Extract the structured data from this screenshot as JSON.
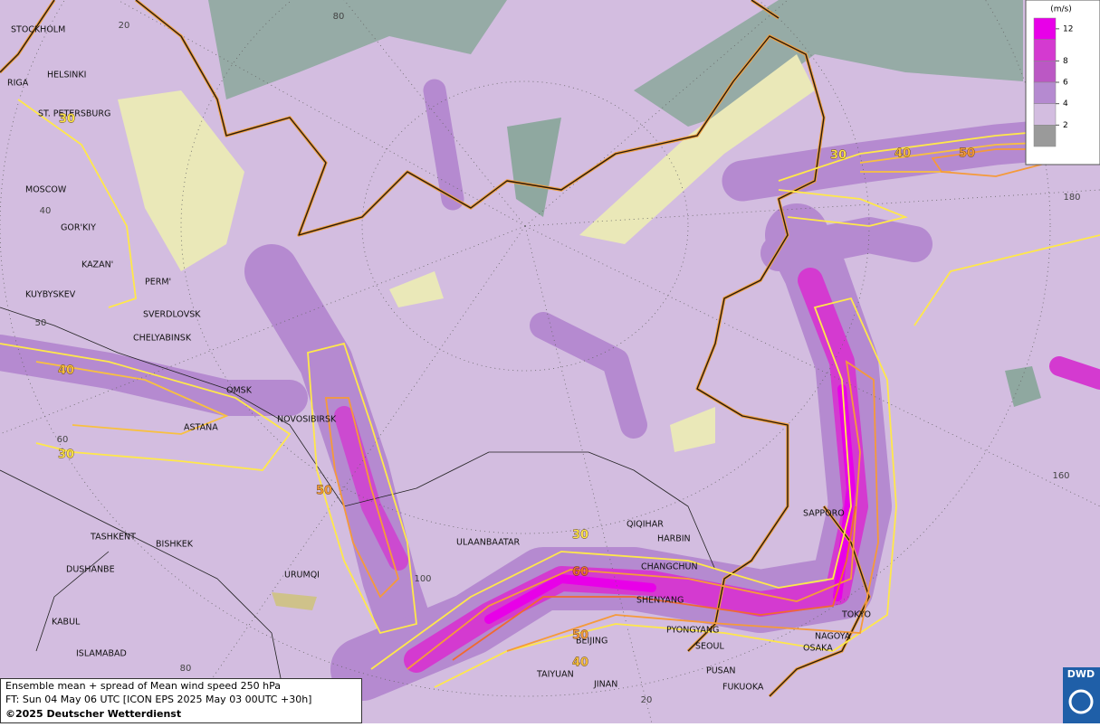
{
  "map": {
    "cities": [
      "STOCKHOLM",
      "HELSINKI",
      "RIGA",
      "ST. PETERSBURG",
      "MOSCOW",
      "GOR'KIY",
      "KAZAN'",
      "PERM'",
      "KUYBYSKEV",
      "SVERDLOVSK",
      "CHELYABINSK",
      "OMSK",
      "NOVOSIBIRSK",
      "ASTANA",
      "TASHKENT",
      "BISHKEK",
      "DUSHANBE",
      "URUMQI",
      "KABUL",
      "ISLAMABAD",
      "ULAANBAATAR",
      "QIQIHAR",
      "HARBIN",
      "CHANGCHUN",
      "SHENYANG",
      "PYONGYANG",
      "SEOUL",
      "BEIJING",
      "TAIYUAN",
      "JINAN",
      "PUSAN",
      "FUKUOKA",
      "OSAKA",
      "NAGOYA",
      "TOKYO",
      "SAPPORO"
    ],
    "graticule_labels": [
      20,
      80,
      40,
      50,
      60,
      100,
      80,
      20,
      180,
      160
    ],
    "contour_labels": [
      {
        "value": 30,
        "color": "#ffe84a"
      },
      {
        "value": 40,
        "color": "#f8c040"
      },
      {
        "value": 30,
        "color": "#ffe84a"
      },
      {
        "value": 50,
        "color": "#f59a3a"
      },
      {
        "value": 30,
        "color": "#ffe84a"
      },
      {
        "value": 60,
        "color": "#f06a30"
      },
      {
        "value": 50,
        "color": "#f59a3a"
      },
      {
        "value": 40,
        "color": "#f8c040"
      },
      {
        "value": 30,
        "color": "#ffe84a"
      },
      {
        "value": 40,
        "color": "#f8c040"
      },
      {
        "value": 50,
        "color": "#f59a3a"
      }
    ]
  },
  "legend": {
    "unit": "(m/s)",
    "levels": [
      12,
      8,
      6,
      4,
      2
    ],
    "colors": [
      "#e800e8",
      "#d43ad0",
      "#bb58c4",
      "#b58ad0",
      "#d3bde0",
      "#9a9a9a"
    ]
  },
  "caption": {
    "line1": "Ensemble mean + spread of Mean wind speed 250 hPa",
    "line2": "FT: Sun 04 May 06 UTC [ICON EPS 2025 May 03 00UTC +30h]",
    "copyright": "©2025 Deutscher Wetterdienst"
  },
  "logo": "DWD"
}
